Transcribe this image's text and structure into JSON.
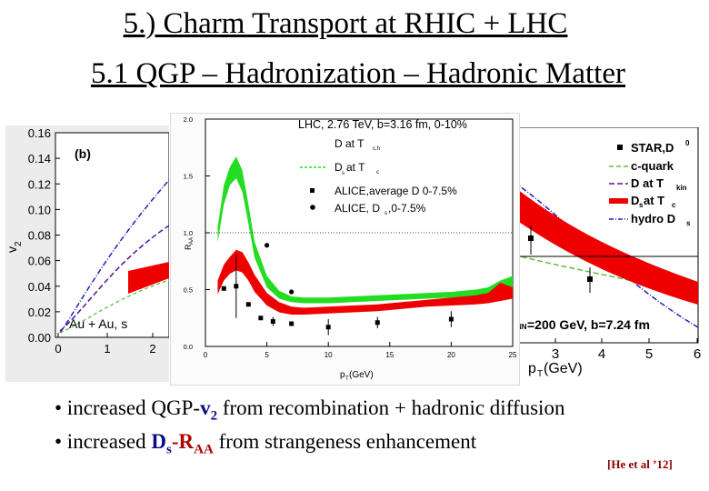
{
  "slide": {
    "title": "5.) Charm Transport at RHIC + LHC",
    "subtitle": "5.1 QGP – Hadronization – Hadronic Matter",
    "reference": "[He et al ’12]"
  },
  "bullets": [
    {
      "pre": "• increased QGP-",
      "main": "v",
      "sub": "2",
      "post": " from recombination + hadronic diffusion"
    },
    {
      "pre": "• increased ",
      "main": "D",
      "sub": "s",
      "mid": "-R",
      "sub2": "AA",
      "post": " from strangeness enhancement"
    }
  ],
  "left_panel": {
    "ylabel": "v",
    "ylabel_sub": "2",
    "panel_tag": "(b)",
    "yticks": [
      "0.16",
      "0.14",
      "0.12",
      "0.10",
      "0.08",
      "0.06",
      "0.04",
      "0.02",
      "0.00"
    ],
    "xticks": [
      "0",
      "1",
      "2"
    ],
    "label": "Au + Au, s"
  },
  "right_panel": {
    "legend": [
      "STAR,D",
      "c-quark",
      "D at T",
      "D",
      "hydro D"
    ],
    "legend_sup": "0",
    "legend_sub_kin": "kin",
    "legend_sub_s": "s",
    "legend_at_tc": " at T",
    "legend_tc_sub": "c",
    "label": "=200 GeV, b=7.24 fm",
    "label_prefix": "NN",
    "xticks": [
      "3",
      "4",
      "5",
      "6"
    ],
    "xlabel": "p",
    "xlabel_sub": "T",
    "xlabel_unit": " (GeV)"
  },
  "chart_data": {
    "type": "line",
    "title": "LHC, 2.76 TeV, b=3.16 fm, 0-10%",
    "xlabel": "p",
    "xlabel_sub": "T",
    "xlabel_unit": " (GeV)",
    "ylabel": "R",
    "ylabel_sub": "AA",
    "xlim": [
      0,
      25
    ],
    "ylim": [
      0,
      2.0
    ],
    "xticks": [
      0,
      5,
      10,
      15,
      20,
      25
    ],
    "yticks": [
      0.0,
      0.5,
      1.0,
      1.5,
      2.0
    ],
    "legend": [
      {
        "label": "D at T",
        "sub": "c,h"
      },
      {
        "label": "D",
        "sub": "s",
        "suffix": " at T",
        "suffix_sub": "c"
      },
      {
        "label": "ALICE,average D 0-7.5%"
      },
      {
        "label": "ALICE, D",
        "sub": "s",
        "suffix": ",0-7.5%"
      }
    ],
    "series": [
      {
        "name": "D at T",
        "color": "#ee0000",
        "x": [
          1,
          1.5,
          2,
          2.5,
          3,
          3.5,
          4,
          5,
          6,
          7,
          8,
          10,
          12,
          14,
          16,
          18,
          20,
          22,
          23,
          24,
          25
        ],
        "lo": [
          0.46,
          0.58,
          0.64,
          0.67,
          0.65,
          0.58,
          0.48,
          0.36,
          0.3,
          0.28,
          0.28,
          0.29,
          0.3,
          0.31,
          0.33,
          0.35,
          0.36,
          0.37,
          0.38,
          0.4,
          0.42
        ],
        "hi": [
          0.58,
          0.72,
          0.79,
          0.85,
          0.83,
          0.74,
          0.63,
          0.47,
          0.39,
          0.35,
          0.34,
          0.35,
          0.36,
          0.37,
          0.39,
          0.41,
          0.43,
          0.45,
          0.47,
          0.56,
          0.52
        ]
      },
      {
        "name": "Ds at Tc",
        "color": "#22dd22",
        "x": [
          1,
          1.5,
          2,
          2.5,
          3,
          3.5,
          4,
          5,
          6,
          7,
          8,
          10,
          12,
          14,
          16,
          18,
          20,
          22,
          23,
          24,
          25
        ],
        "lo": [
          0.92,
          1.25,
          1.42,
          1.48,
          1.36,
          1.08,
          0.78,
          0.52,
          0.42,
          0.39,
          0.38,
          0.38,
          0.39,
          0.4,
          0.41,
          0.42,
          0.43,
          0.44,
          0.45,
          0.48,
          0.52
        ],
        "hi": [
          1.05,
          1.42,
          1.58,
          1.67,
          1.55,
          1.25,
          0.92,
          0.62,
          0.49,
          0.44,
          0.43,
          0.43,
          0.44,
          0.45,
          0.46,
          0.47,
          0.48,
          0.5,
          0.52,
          0.58,
          0.62
        ]
      }
    ],
    "points": [
      {
        "series": "ALICE,average D 0-7.5%",
        "x": 1.5,
        "y": 0.51,
        "err": 0.0
      },
      {
        "series": "ALICE,average D 0-7.5%",
        "x": 2.5,
        "y": 0.53,
        "err": 0.28
      },
      {
        "series": "ALICE,average D 0-7.5%",
        "x": 3.5,
        "y": 0.37,
        "err": 0.0
      },
      {
        "series": "ALICE,average D 0-7.5%",
        "x": 4.5,
        "y": 0.25,
        "err": 0.0
      },
      {
        "series": "ALICE,average D 0-7.5%",
        "x": 5.5,
        "y": 0.22,
        "err": 0.04
      },
      {
        "series": "ALICE,average D 0-7.5%",
        "x": 7,
        "y": 0.2,
        "err": 0.0
      },
      {
        "series": "ALICE,average D 0-7.5%",
        "x": 10,
        "y": 0.17,
        "err": 0.07
      },
      {
        "series": "ALICE,average D 0-7.5%",
        "x": 14,
        "y": 0.21,
        "err": 0.05
      },
      {
        "series": "ALICE,average D 0-7.5%",
        "x": 20,
        "y": 0.24,
        "err": 0.07
      },
      {
        "series": "ALICE, Ds,0-7.5%",
        "x": 5,
        "y": 0.89,
        "err": 0.0
      },
      {
        "series": "ALICE, Ds,0-7.5%",
        "x": 7,
        "y": 0.48,
        "err": 0.0
      }
    ],
    "reference_line": 1.0
  }
}
